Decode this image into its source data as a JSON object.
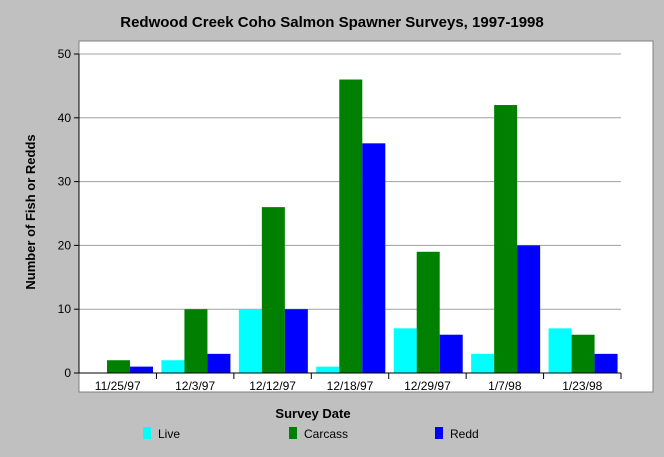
{
  "chart_data": {
    "type": "bar",
    "title": "Redwood Creek Coho Salmon Spawner Surveys, 1997-1998",
    "xlabel": "Survey Date",
    "ylabel": "Number of Fish or Redds",
    "categories": [
      "11/25/97",
      "12/3/97",
      "12/12/97",
      "12/18/97",
      "12/29/97",
      "1/7/98",
      "1/23/98"
    ],
    "ylim": [
      0,
      50
    ],
    "yticks": [
      0,
      10,
      20,
      30,
      40,
      50
    ],
    "grid": true,
    "legend_position": "bottom",
    "series": [
      {
        "name": "Live",
        "color": "#00ffff",
        "values": [
          0,
          2,
          10,
          1,
          7,
          3,
          7
        ]
      },
      {
        "name": "Carcass",
        "color": "#008000",
        "values": [
          2,
          10,
          26,
          46,
          19,
          42,
          6
        ]
      },
      {
        "name": "Redd",
        "color": "#0000ff",
        "values": [
          1,
          3,
          10,
          36,
          6,
          20,
          3
        ]
      }
    ]
  }
}
